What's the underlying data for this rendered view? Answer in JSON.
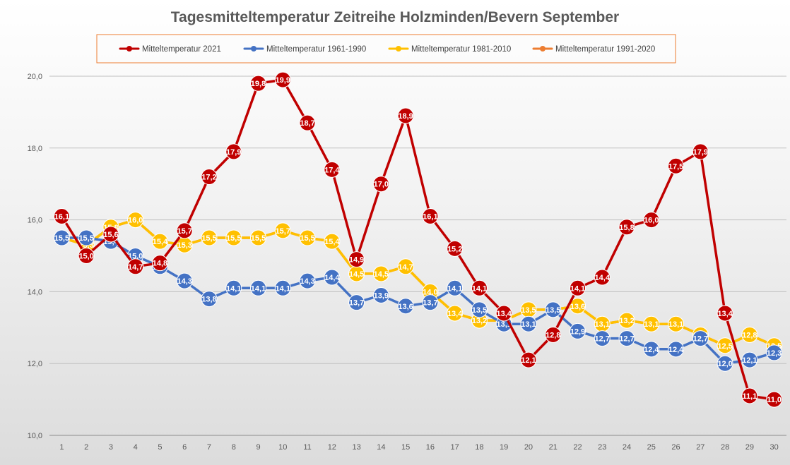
{
  "chart_data": {
    "type": "line",
    "title": "Tagesmitteltemperatur Zeitreihe Holzminden/Bevern September",
    "xlabel": "",
    "ylabel": "",
    "x": [
      1,
      2,
      3,
      4,
      5,
      6,
      7,
      8,
      9,
      10,
      11,
      12,
      13,
      14,
      15,
      16,
      17,
      18,
      19,
      20,
      21,
      22,
      23,
      24,
      25,
      26,
      27,
      28,
      29,
      30
    ],
    "ylim": [
      10,
      20
    ],
    "yticks": [
      "10,0",
      "12,0",
      "14,0",
      "16,0",
      "18,0",
      "20,0"
    ],
    "ytick_values": [
      10,
      12,
      14,
      16,
      18,
      20
    ],
    "grid": true,
    "legend_position": "top",
    "series": [
      {
        "name": "Mitteltemperatur 1991-2020",
        "color": "#ED7D31",
        "values": [
          15.5,
          15.3,
          15.8,
          16.0,
          15.4,
          15.3,
          15.5,
          15.5,
          15.5,
          15.7,
          15.5,
          15.4,
          14.5,
          14.5,
          14.7,
          14.0,
          13.4,
          13.2,
          13.2,
          13.5,
          13.5,
          13.6,
          13.1,
          13.2,
          13.1,
          13.1,
          12.8,
          12.5,
          12.8,
          12.5
        ]
      },
      {
        "name": "Mitteltemperatur 1981-2010",
        "color": "#FFC000",
        "values": [
          15.5,
          15.3,
          15.8,
          16.0,
          15.4,
          15.3,
          15.5,
          15.5,
          15.5,
          15.7,
          15.5,
          15.4,
          14.5,
          14.5,
          14.7,
          14.0,
          13.4,
          13.2,
          13.2,
          13.5,
          13.5,
          13.6,
          13.1,
          13.2,
          13.1,
          13.1,
          12.8,
          12.5,
          12.8,
          12.5
        ]
      },
      {
        "name": "Mitteltemperatur 1961-1990",
        "color": "#4472C4",
        "values": [
          15.5,
          15.5,
          15.4,
          15.0,
          14.7,
          14.3,
          13.8,
          14.1,
          14.1,
          14.1,
          14.3,
          14.4,
          13.7,
          13.9,
          13.6,
          13.7,
          14.1,
          13.5,
          13.1,
          13.1,
          13.5,
          12.9,
          12.7,
          12.7,
          12.4,
          12.4,
          12.7,
          12.0,
          12.1,
          12.3
        ]
      },
      {
        "name": "Mitteltemperatur 2021",
        "color": "#C00000",
        "values": [
          16.1,
          15.0,
          15.6,
          14.7,
          14.8,
          15.7,
          17.2,
          17.9,
          19.8,
          19.9,
          18.7,
          17.4,
          14.9,
          17.0,
          18.9,
          16.1,
          15.2,
          14.1,
          13.4,
          12.1,
          12.8,
          14.1,
          14.4,
          15.8,
          16.0,
          17.5,
          17.9,
          13.4,
          11.1,
          11.0
        ]
      }
    ]
  },
  "legend": [
    {
      "label": "Mitteltemperatur 2021",
      "color": "#C00000"
    },
    {
      "label": "Mitteltemperatur 1961-1990",
      "color": "#4472C4"
    },
    {
      "label": "Mitteltemperatur 1981-2010",
      "color": "#FFC000"
    },
    {
      "label": "Mitteltemperatur 1991-2020",
      "color": "#ED7D31"
    }
  ]
}
